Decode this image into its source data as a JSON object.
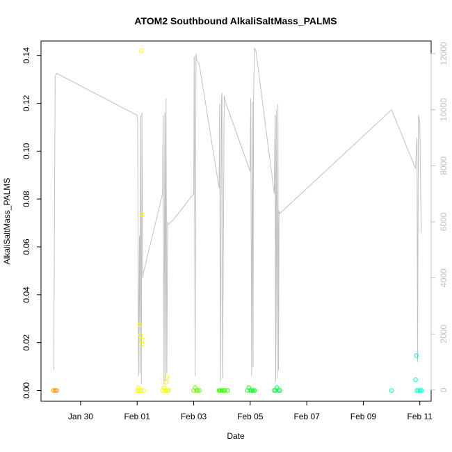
{
  "chart_data": {
    "type": "scatter",
    "title": "ATOM2 Southbound AlkaliSaltMass_PALMS",
    "xlabel": "Date",
    "ylabel": "AlkaliSaltMass_PALMS",
    "x_ticks": [
      "Jan 30",
      "Feb 01",
      "Feb 03",
      "Feb 05",
      "Feb 07",
      "Feb 09",
      "Feb 11"
    ],
    "x_tick_days": [
      30,
      32,
      34,
      36,
      38,
      40,
      42
    ],
    "xlim_days": [
      28.6,
      42.4
    ],
    "ylim": [
      -0.0045,
      0.146
    ],
    "y_ticks": [
      0.0,
      0.02,
      0.04,
      0.06,
      0.08,
      0.1,
      0.12,
      0.14
    ],
    "y_tick_labels": [
      "0.00",
      "0.02",
      "0.04",
      "0.06",
      "0.08",
      "0.10",
      "0.12",
      "0.14"
    ],
    "right_axis": {
      "ylim": [
        -400,
        12450
      ],
      "ticks": [
        0,
        2000,
        4000,
        6000,
        8000,
        10000,
        12000
      ],
      "tick_labels": [
        "0",
        "2000",
        "4000",
        "6000",
        "8000",
        "10000",
        "12000"
      ],
      "color": "#c0c0c0"
    },
    "points": [
      {
        "x": 29.05,
        "y": 0.0,
        "color": "#ff8c00"
      },
      {
        "x": 29.1,
        "y": 0.0,
        "color": "#ff8c00"
      },
      {
        "x": 29.15,
        "y": 0.0,
        "color": "#ff8c00"
      },
      {
        "x": 32.02,
        "y": 0.0,
        "color": "#ffff00"
      },
      {
        "x": 32.05,
        "y": 0.001,
        "color": "#ffff00"
      },
      {
        "x": 32.08,
        "y": 0.0,
        "color": "#ffff00"
      },
      {
        "x": 32.1,
        "y": 0.0275,
        "color": "#ffff00"
      },
      {
        "x": 32.12,
        "y": 0.023,
        "color": "#ffff00"
      },
      {
        "x": 32.14,
        "y": 0.0,
        "color": "#ffff00"
      },
      {
        "x": 32.15,
        "y": 0.142,
        "color": "#ffff00"
      },
      {
        "x": 32.17,
        "y": 0.0195,
        "color": "#ffff00"
      },
      {
        "x": 32.18,
        "y": 0.0735,
        "color": "#ffff00"
      },
      {
        "x": 32.2,
        "y": 0.021,
        "color": "#ffff00"
      },
      {
        "x": 32.22,
        "y": 0.0,
        "color": "#ffff00"
      },
      {
        "x": 32.9,
        "y": 0.0,
        "color": "#eeff00"
      },
      {
        "x": 32.95,
        "y": 0.001,
        "color": "#eeff00"
      },
      {
        "x": 33.0,
        "y": 0.0,
        "color": "#eeff00"
      },
      {
        "x": 33.02,
        "y": 0.0035,
        "color": "#eeff00"
      },
      {
        "x": 33.05,
        "y": 0.0055,
        "color": "#eeff00"
      },
      {
        "x": 33.08,
        "y": 0.0,
        "color": "#eeff00"
      },
      {
        "x": 33.12,
        "y": 0.0,
        "color": "#eeff00"
      },
      {
        "x": 34.0,
        "y": 0.0,
        "color": "#66ff00"
      },
      {
        "x": 34.05,
        "y": 0.0012,
        "color": "#66ff00"
      },
      {
        "x": 34.1,
        "y": 0.0,
        "color": "#66ff00"
      },
      {
        "x": 34.15,
        "y": 0.0,
        "color": "#66ff00"
      },
      {
        "x": 34.2,
        "y": 0.0,
        "color": "#66ff00"
      },
      {
        "x": 34.9,
        "y": 0.0,
        "color": "#33ff00"
      },
      {
        "x": 34.95,
        "y": 0.0,
        "color": "#33ff00"
      },
      {
        "x": 35.0,
        "y": 0.0,
        "color": "#33ff00"
      },
      {
        "x": 35.05,
        "y": 0.0,
        "color": "#33ff00"
      },
      {
        "x": 35.1,
        "y": 0.0,
        "color": "#33ff00"
      },
      {
        "x": 35.2,
        "y": 0.0,
        "color": "#33ff00"
      },
      {
        "x": 35.9,
        "y": 0.0,
        "color": "#11ff22"
      },
      {
        "x": 35.95,
        "y": 0.0012,
        "color": "#11ff22"
      },
      {
        "x": 36.0,
        "y": 0.0,
        "color": "#11ff22"
      },
      {
        "x": 36.05,
        "y": 0.0,
        "color": "#11ff22"
      },
      {
        "x": 36.1,
        "y": 0.0,
        "color": "#11ff22"
      },
      {
        "x": 36.15,
        "y": 0.0,
        "color": "#11ff22"
      },
      {
        "x": 36.85,
        "y": 0.0,
        "color": "#00ff44"
      },
      {
        "x": 36.9,
        "y": 0.0,
        "color": "#00ff44"
      },
      {
        "x": 36.95,
        "y": 0.0012,
        "color": "#00ff44"
      },
      {
        "x": 37.0,
        "y": 0.0,
        "color": "#00ff44"
      },
      {
        "x": 37.05,
        "y": 0.0,
        "color": "#00ff44"
      },
      {
        "x": 41.0,
        "y": 0.0,
        "color": "#00ffaa"
      },
      {
        "x": 41.85,
        "y": 0.0045,
        "color": "#00ffcc"
      },
      {
        "x": 41.88,
        "y": 0.0145,
        "color": "#00ffcc"
      },
      {
        "x": 41.9,
        "y": 0.0,
        "color": "#00ffcc"
      },
      {
        "x": 41.95,
        "y": 0.0,
        "color": "#00ffcc"
      },
      {
        "x": 42.0,
        "y": 0.0,
        "color": "#00ffcc"
      },
      {
        "x": 42.05,
        "y": 0.0,
        "color": "#00ffcc"
      }
    ],
    "line_series": {
      "axis": "right",
      "color": "#c0c0c0",
      "x": [
        29.05,
        29.1,
        29.15,
        32.0,
        32.02,
        32.05,
        32.08,
        32.1,
        32.12,
        32.15,
        32.17,
        32.2,
        32.22,
        32.25,
        32.9,
        32.92,
        32.95,
        32.98,
        33.0,
        33.02,
        33.05,
        33.08,
        33.1,
        33.3,
        34.0,
        34.02,
        34.05,
        34.08,
        34.1,
        34.15,
        34.2,
        34.9,
        34.92,
        34.95,
        34.98,
        35.0,
        35.02,
        35.05,
        35.08,
        35.1,
        35.15,
        36.0,
        36.02,
        36.05,
        36.08,
        36.1,
        36.12,
        36.15,
        36.2,
        36.85,
        36.88,
        36.9,
        36.92,
        36.95,
        36.98,
        37.0,
        37.02,
        37.05,
        41.0,
        41.85,
        41.88,
        41.9,
        41.92,
        41.95,
        41.98,
        42.0,
        42.05
      ],
      "y": [
        700,
        11200,
        11300,
        9800,
        9600,
        500,
        5500,
        600,
        9800,
        200,
        9900,
        4000,
        4200,
        4300,
        7000,
        9800,
        200,
        9900,
        300,
        10400,
        600,
        6000,
        5900,
        6100,
        7000,
        11900,
        500,
        12000,
        11800,
        11700,
        11600,
        7200,
        10200,
        300,
        10300,
        10600,
        400,
        5200,
        10500,
        10400,
        10200,
        7800,
        10400,
        500,
        10300,
        800,
        10500,
        12200,
        12100,
        7000,
        9800,
        300,
        10000,
        400,
        10200,
        700,
        6400,
        6300,
        10000,
        7900,
        8700,
        9000,
        1000,
        9800,
        9700,
        9500,
        5600
      ]
    }
  }
}
